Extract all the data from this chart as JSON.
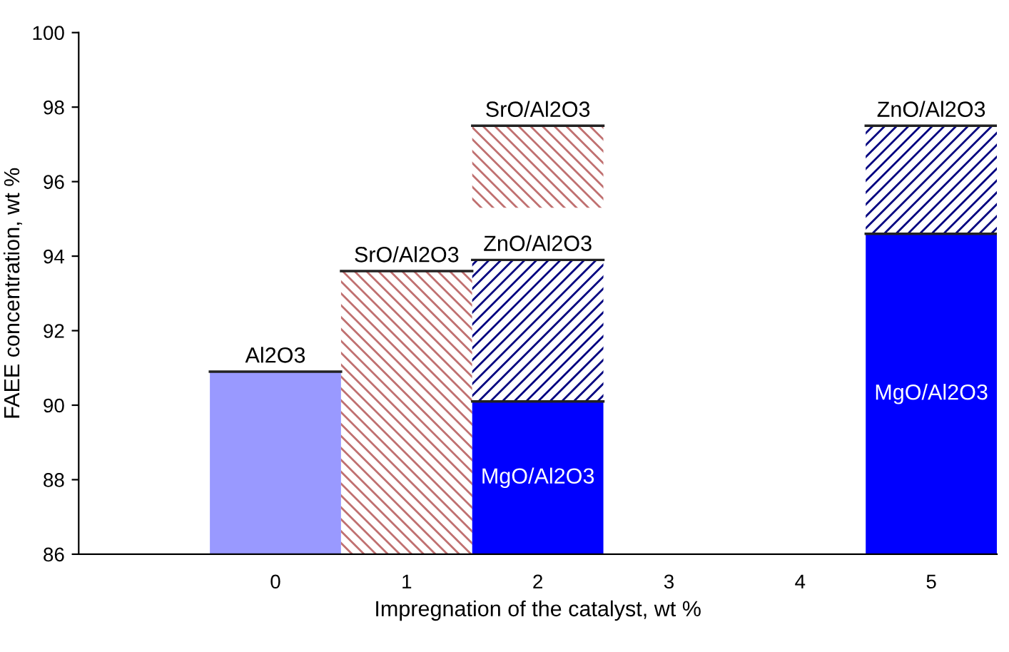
{
  "chart_data": {
    "type": "bar",
    "xlabel": "Impregnation of the catalyst, wt %",
    "ylabel": "FAEE concentration, wt %",
    "categories": [
      null,
      "0",
      "1",
      "2",
      "3",
      "4",
      "5"
    ],
    "series": [
      {
        "name": "Al2O3",
        "color": "#9999ff",
        "values": [
          null,
          90.9,
          null,
          null,
          null,
          null,
          null
        ]
      },
      {
        "name": "SrO/Al2O3",
        "color": "#c07070",
        "values": [
          null,
          null,
          93.6,
          2.2,
          null,
          null,
          null
        ],
        "base": [
          null,
          null,
          null,
          95.3,
          null,
          null,
          null
        ]
      },
      {
        "name": "MgO/Al2O3",
        "color": "#0000ff",
        "values": [
          null,
          null,
          null,
          90.1,
          null,
          null,
          94.6
        ]
      },
      {
        "name": "ZnO/Al2O3",
        "color": "#000080",
        "values": [
          null,
          null,
          null,
          3.8,
          null,
          null,
          2.9
        ],
        "base": [
          null,
          null,
          null,
          90.1,
          null,
          null,
          94.6
        ]
      }
    ],
    "ylim": [
      86,
      100
    ],
    "yticks": [
      86,
      88,
      90,
      92,
      94,
      96,
      98,
      100
    ],
    "grid": false,
    "legend": false
  }
}
